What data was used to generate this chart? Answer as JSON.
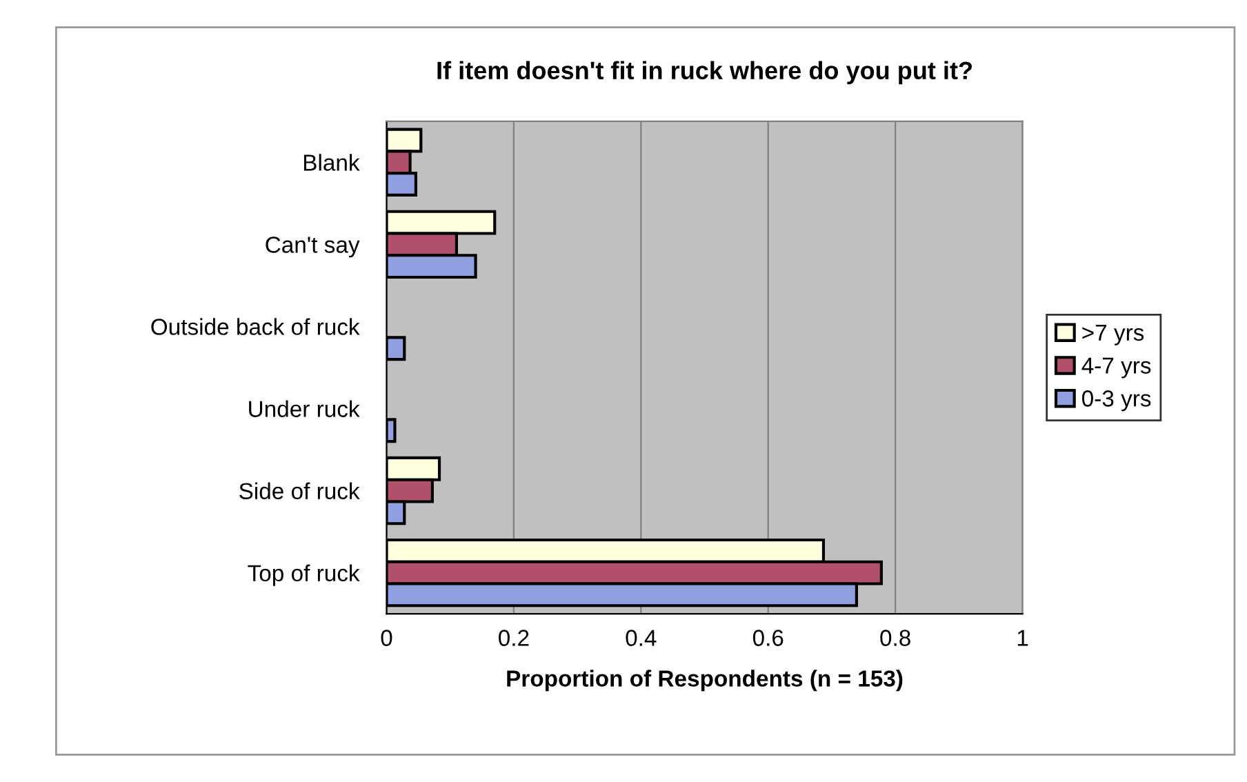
{
  "chart_data": {
    "type": "bar",
    "orientation": "horizontal",
    "title": "If item doesn't fit in ruck where do you put it?",
    "xlabel": "Proportion of Respondents (n = 153)",
    "categories": [
      "Blank",
      "Can't say",
      "Outside back of ruck",
      "Under ruck",
      "Side of ruck",
      "Top of ruck"
    ],
    "series": [
      {
        "name": ">7 yrs",
        "color": "#ffffe0",
        "values": [
          0.054,
          0.17,
          0,
          0,
          0.083,
          0.687
        ]
      },
      {
        "name": "4-7 yrs",
        "color": "#b0506a",
        "values": [
          0.037,
          0.11,
          0,
          0,
          0.072,
          0.778
        ]
      },
      {
        "name": "0-3 yrs",
        "color": "#8f9fe0",
        "values": [
          0.046,
          0.14,
          0.028,
          0.013,
          0.028,
          0.739
        ]
      }
    ],
    "xlim": [
      0,
      1
    ],
    "xticks": [
      0,
      0.2,
      0.4,
      0.6,
      0.8,
      1
    ],
    "grid": "x",
    "legend": "right"
  }
}
